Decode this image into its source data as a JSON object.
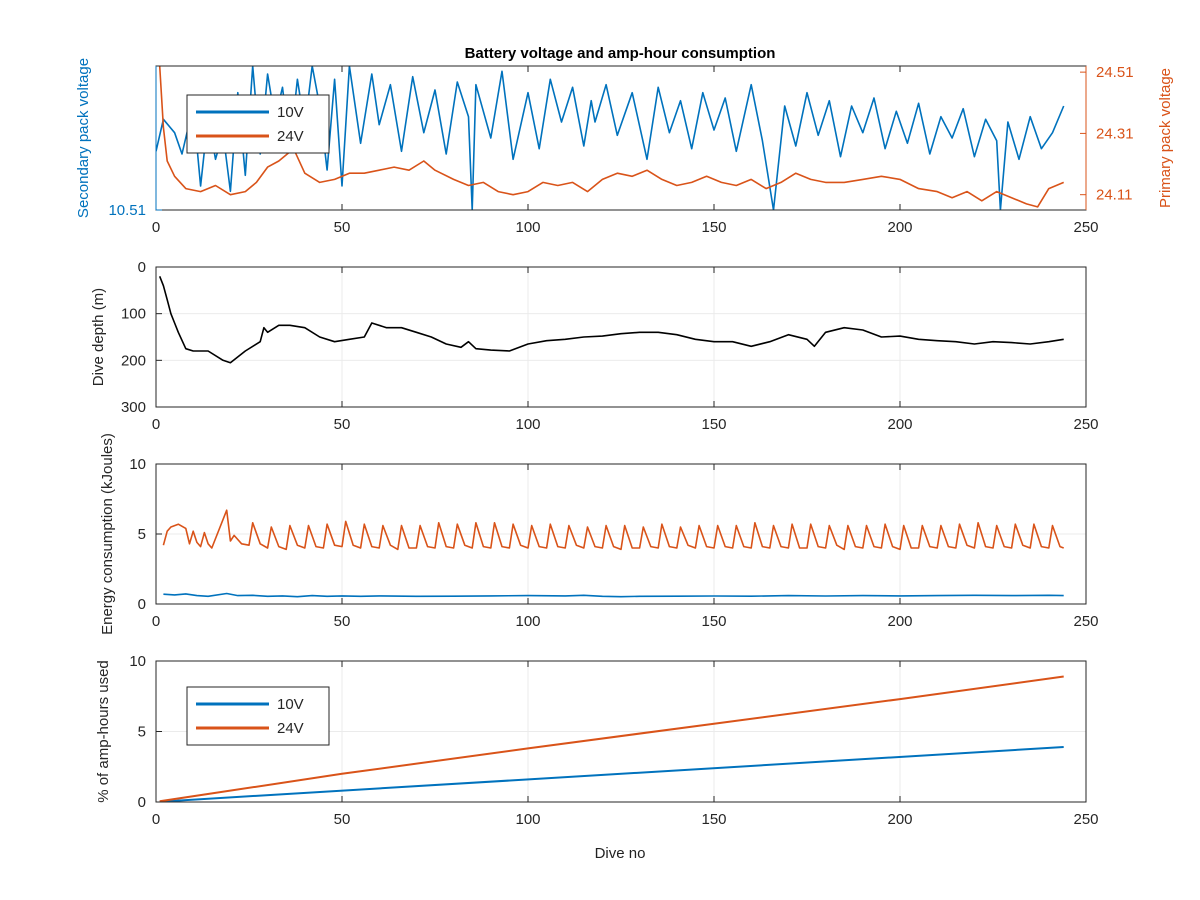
{
  "figure": {
    "title": "Battery voltage and amp-hour consumption",
    "x_axis_label": "Dive no"
  },
  "colors": {
    "blue": "#0072bd",
    "orange": "#d95319",
    "black": "#000000",
    "grid": "#ebebeb"
  },
  "chart_data": [
    {
      "type": "line",
      "panel": "voltage",
      "title": "Battery voltage and amp-hour consumption",
      "xlabel": "",
      "ylabel": "Secondary pack voltage",
      "y2label": "Primary pack voltage",
      "xlim": [
        0,
        250
      ],
      "xticks": [
        "0",
        "50",
        "100",
        "150",
        "200",
        "250"
      ],
      "ylim": [
        10.51,
        11.05
      ],
      "yticks": [
        "10.51"
      ],
      "y2lim": [
        24.06,
        24.53
      ],
      "y2ticks": [
        "24.11",
        "24.31",
        "24.51"
      ],
      "grid": false,
      "legend": {
        "position": "top-left",
        "entries": [
          "10V",
          "24V"
        ]
      },
      "series": [
        {
          "name": "10V",
          "axis": "left",
          "color": "#0072bd",
          "x": [
            0,
            2,
            5,
            7,
            10,
            12,
            14,
            16,
            18,
            20,
            22,
            24,
            26,
            28,
            30,
            32,
            34,
            36,
            38,
            40,
            42,
            44,
            46,
            48,
            50,
            52,
            55,
            58,
            60,
            63,
            66,
            69,
            72,
            75,
            78,
            81,
            84,
            85,
            86,
            90,
            93,
            96,
            100,
            103,
            106,
            109,
            112,
            115,
            117,
            118,
            121,
            124,
            128,
            132,
            135,
            138,
            141,
            144,
            147,
            150,
            153,
            156,
            160,
            163,
            166,
            169,
            172,
            175,
            178,
            181,
            184,
            187,
            190,
            193,
            196,
            199,
            202,
            205,
            208,
            211,
            214,
            217,
            220,
            223,
            226,
            227,
            229,
            232,
            235,
            238,
            241,
            244
          ],
          "y": [
            10.73,
            10.85,
            10.8,
            10.72,
            10.9,
            10.6,
            10.86,
            10.7,
            10.8,
            10.58,
            10.95,
            10.64,
            11.05,
            10.72,
            11.02,
            10.85,
            10.97,
            10.74,
            11.0,
            10.82,
            11.05,
            10.9,
            10.66,
            11.0,
            10.6,
            11.05,
            10.76,
            11.02,
            10.83,
            10.98,
            10.73,
            11.01,
            10.8,
            10.96,
            10.72,
            10.99,
            10.86,
            10.51,
            10.98,
            10.78,
            11.03,
            10.7,
            10.95,
            10.74,
            11.0,
            10.84,
            10.97,
            10.75,
            10.92,
            10.84,
            10.98,
            10.79,
            10.95,
            10.7,
            10.97,
            10.8,
            10.92,
            10.74,
            10.95,
            10.81,
            10.93,
            10.73,
            10.98,
            10.77,
            10.51,
            10.9,
            10.75,
            10.95,
            10.79,
            10.92,
            10.71,
            10.9,
            10.8,
            10.93,
            10.74,
            10.88,
            10.76,
            10.91,
            10.72,
            10.86,
            10.78,
            10.89,
            10.71,
            10.85,
            10.77,
            10.51,
            10.84,
            10.7,
            10.86,
            10.74,
            10.8,
            10.9
          ]
        },
        {
          "name": "24V",
          "axis": "right",
          "color": "#d95319",
          "x": [
            1,
            2,
            3,
            5,
            8,
            12,
            16,
            20,
            24,
            27,
            30,
            33,
            37,
            40,
            44,
            48,
            52,
            56,
            60,
            64,
            68,
            72,
            75,
            80,
            84,
            88,
            92,
            96,
            100,
            104,
            108,
            112,
            116,
            120,
            124,
            128,
            132,
            136,
            140,
            144,
            148,
            152,
            156,
            160,
            164,
            168,
            172,
            176,
            180,
            185,
            190,
            195,
            200,
            205,
            210,
            214,
            218,
            222,
            226,
            230,
            234,
            237,
            240,
            244
          ],
          "y": [
            24.53,
            24.33,
            24.22,
            24.17,
            24.13,
            24.12,
            24.14,
            24.11,
            24.12,
            24.15,
            24.2,
            24.22,
            24.26,
            24.18,
            24.15,
            24.16,
            24.18,
            24.18,
            24.19,
            24.2,
            24.19,
            24.22,
            24.19,
            24.16,
            24.14,
            24.15,
            24.12,
            24.11,
            24.12,
            24.15,
            24.14,
            24.15,
            24.12,
            24.16,
            24.18,
            24.17,
            24.19,
            24.16,
            24.14,
            24.15,
            24.17,
            24.15,
            24.14,
            24.16,
            24.13,
            24.15,
            24.18,
            24.16,
            24.15,
            24.15,
            24.16,
            24.17,
            24.16,
            24.13,
            24.12,
            24.1,
            24.12,
            24.09,
            24.12,
            24.1,
            24.08,
            24.07,
            24.13,
            24.15
          ]
        }
      ]
    },
    {
      "type": "line",
      "panel": "depth",
      "xlabel": "",
      "ylabel": "Dive depth (m)",
      "xlim": [
        0,
        250
      ],
      "xticks": [
        "0",
        "50",
        "100",
        "150",
        "200",
        "250"
      ],
      "ylim": [
        300,
        0
      ],
      "yticks": [
        "0",
        "100",
        "200",
        "300"
      ],
      "grid": true,
      "series": [
        {
          "color": "#000000",
          "x": [
            1,
            2,
            3,
            4,
            5,
            6,
            8,
            10,
            14,
            18,
            20,
            24,
            28,
            29,
            30,
            33,
            36,
            40,
            44,
            48,
            52,
            56,
            58,
            62,
            66,
            70,
            74,
            78,
            82,
            84,
            86,
            90,
            95,
            100,
            105,
            110,
            115,
            120,
            125,
            130,
            135,
            140,
            145,
            150,
            155,
            160,
            165,
            170,
            175,
            177,
            180,
            185,
            190,
            195,
            200,
            205,
            210,
            215,
            220,
            225,
            230,
            235,
            240,
            244
          ],
          "y": [
            20,
            40,
            70,
            100,
            120,
            140,
            175,
            180,
            180,
            200,
            205,
            180,
            160,
            130,
            140,
            125,
            125,
            130,
            150,
            160,
            155,
            150,
            120,
            130,
            130,
            140,
            150,
            165,
            172,
            160,
            175,
            178,
            180,
            165,
            158,
            155,
            150,
            148,
            143,
            140,
            140,
            145,
            155,
            160,
            160,
            170,
            160,
            145,
            155,
            170,
            140,
            130,
            135,
            150,
            148,
            155,
            158,
            160,
            165,
            160,
            162,
            165,
            160,
            155
          ]
        }
      ]
    },
    {
      "type": "line",
      "panel": "energy",
      "xlabel": "",
      "ylabel": "Energy consumption (kJoules)",
      "xlim": [
        0,
        250
      ],
      "xticks": [
        "0",
        "50",
        "100",
        "150",
        "200",
        "250"
      ],
      "ylim": [
        0,
        10
      ],
      "yticks": [
        "0",
        "5",
        "10"
      ],
      "grid": true,
      "series": [
        {
          "name": "24V",
          "color": "#d95319",
          "x": [
            2,
            3,
            4,
            6,
            8,
            9,
            10,
            11,
            12,
            13,
            14,
            15,
            19,
            20,
            21,
            23,
            25,
            26,
            28,
            30,
            31,
            33,
            35,
            36,
            38,
            40,
            41,
            43,
            45,
            46,
            48,
            50,
            51,
            53,
            55,
            56,
            58,
            60,
            61,
            63,
            65,
            66,
            68,
            70,
            71,
            73,
            75,
            76,
            78,
            80,
            81,
            83,
            85,
            86,
            88,
            90,
            91,
            93,
            95,
            96,
            98,
            100,
            101,
            103,
            105,
            106,
            108,
            110,
            111,
            113,
            115,
            116,
            118,
            120,
            121,
            123,
            125,
            126,
            128,
            130,
            131,
            133,
            135,
            136,
            138,
            140,
            141,
            143,
            145,
            146,
            148,
            150,
            151,
            153,
            155,
            156,
            158,
            160,
            161,
            163,
            165,
            166,
            168,
            170,
            171,
            173,
            175,
            176,
            178,
            180,
            181,
            183,
            185,
            186,
            188,
            190,
            191,
            193,
            195,
            196,
            198,
            200,
            201,
            203,
            205,
            206,
            208,
            210,
            211,
            213,
            215,
            216,
            218,
            220,
            221,
            223,
            225,
            226,
            228,
            230,
            231,
            233,
            235,
            236,
            238,
            240,
            241,
            243,
            244
          ],
          "y": [
            4.2,
            5.2,
            5.5,
            5.7,
            5.4,
            4.3,
            5.2,
            4.4,
            4.1,
            5.1,
            4.3,
            4.0,
            6.7,
            4.5,
            4.9,
            4.3,
            4.2,
            5.8,
            4.3,
            4.0,
            5.5,
            4.1,
            3.9,
            5.6,
            4.2,
            4.0,
            5.6,
            4.1,
            4.0,
            5.7,
            4.2,
            4.1,
            5.9,
            4.2,
            4.0,
            5.7,
            4.1,
            4.0,
            5.6,
            4.2,
            3.9,
            5.6,
            4.0,
            4.0,
            5.6,
            4.1,
            4.0,
            5.8,
            4.1,
            4.0,
            5.7,
            4.2,
            4.0,
            5.8,
            4.1,
            4.0,
            5.8,
            4.1,
            4.0,
            5.7,
            4.2,
            4.0,
            5.6,
            4.1,
            4.0,
            5.7,
            4.1,
            4.0,
            5.6,
            4.2,
            4.0,
            5.5,
            4.1,
            4.0,
            5.6,
            4.1,
            3.9,
            5.6,
            4.0,
            4.0,
            5.5,
            4.1,
            4.0,
            5.7,
            4.1,
            4.0,
            5.5,
            4.2,
            4.0,
            5.6,
            4.1,
            4.0,
            5.6,
            4.1,
            4.0,
            5.6,
            4.1,
            4.0,
            5.8,
            4.1,
            4.0,
            5.6,
            4.1,
            4.0,
            5.7,
            4.0,
            4.0,
            5.7,
            4.1,
            4.0,
            5.6,
            4.2,
            3.9,
            5.6,
            4.1,
            4.0,
            5.6,
            4.1,
            4.0,
            5.7,
            4.1,
            3.9,
            5.6,
            4.0,
            4.0,
            5.6,
            4.1,
            4.0,
            5.6,
            4.1,
            4.0,
            5.7,
            4.2,
            4.0,
            5.8,
            4.1,
            4.0,
            5.6,
            4.1,
            4.0,
            5.7,
            4.2,
            4.0,
            5.7,
            4.1,
            4.0,
            5.6,
            4.1,
            4.0
          ]
        },
        {
          "name": "10V",
          "color": "#0072bd",
          "x": [
            2,
            5,
            8,
            11,
            14,
            19,
            22,
            26,
            30,
            34,
            38,
            42,
            46,
            50,
            55,
            60,
            70,
            80,
            90,
            100,
            110,
            115,
            120,
            125,
            130,
            140,
            150,
            160,
            170,
            180,
            190,
            200,
            210,
            220,
            230,
            240,
            244
          ],
          "y": [
            0.7,
            0.65,
            0.72,
            0.6,
            0.55,
            0.75,
            0.6,
            0.62,
            0.55,
            0.58,
            0.52,
            0.6,
            0.55,
            0.58,
            0.55,
            0.58,
            0.55,
            0.56,
            0.58,
            0.6,
            0.58,
            0.62,
            0.55,
            0.52,
            0.55,
            0.56,
            0.57,
            0.56,
            0.6,
            0.57,
            0.6,
            0.58,
            0.6,
            0.62,
            0.6,
            0.62,
            0.6
          ]
        }
      ]
    },
    {
      "type": "line",
      "panel": "amp-hours",
      "xlabel": "Dive no",
      "ylabel": "% of amp-hours used",
      "xlim": [
        0,
        250
      ],
      "xticks": [
        "0",
        "50",
        "100",
        "150",
        "200",
        "250"
      ],
      "ylim": [
        0,
        10
      ],
      "yticks": [
        "0",
        "5",
        "10"
      ],
      "grid": true,
      "legend": {
        "position": "top-left",
        "entries": [
          "10V",
          "24V"
        ]
      },
      "series": [
        {
          "name": "10V",
          "color": "#0072bd",
          "x": [
            1,
            244
          ],
          "y": [
            0.02,
            3.9
          ]
        },
        {
          "name": "24V",
          "color": "#d95319",
          "x": [
            1,
            50,
            100,
            150,
            200,
            244
          ],
          "y": [
            0.05,
            2.0,
            3.8,
            5.55,
            7.3,
            8.9
          ]
        }
      ]
    }
  ]
}
